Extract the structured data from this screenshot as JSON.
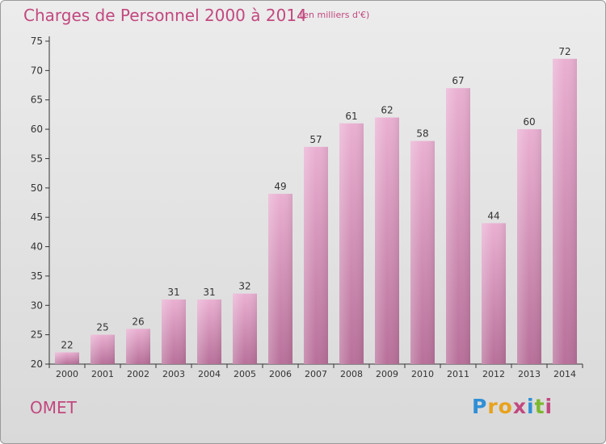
{
  "header": {
    "title": "Charges de Personnel 2000 à 2014",
    "subtitle": "(en milliers d'€)"
  },
  "footer": {
    "commune": "OMET",
    "logo_letters": [
      "P",
      "r",
      "o",
      "x",
      "i",
      "t",
      "i"
    ],
    "logo_colors": [
      "#2f8fd6",
      "#e8a21c",
      "#e8a21c",
      "#c2487f",
      "#2f8fd6",
      "#7cb82f",
      "#c2487f"
    ]
  },
  "colors": {
    "bar_top": "#eab0d2",
    "bar_bottom": "#b8709a",
    "accent": "#c2487f",
    "axis": "#333333"
  },
  "chart_data": {
    "type": "bar",
    "categories": [
      "2000",
      "2001",
      "2002",
      "2003",
      "2004",
      "2005",
      "2006",
      "2007",
      "2008",
      "2009",
      "2010",
      "2011",
      "2012",
      "2013",
      "2014"
    ],
    "values": [
      22,
      25,
      26,
      31,
      31,
      32,
      49,
      57,
      61,
      62,
      58,
      67,
      44,
      60,
      72
    ],
    "ylim": [
      20,
      75
    ],
    "yticks": [
      20,
      25,
      30,
      35,
      40,
      45,
      50,
      55,
      60,
      65,
      70,
      75
    ],
    "title": "Charges de Personnel 2000 à 2014",
    "xlabel": "",
    "ylabel": "",
    "grid": false
  }
}
